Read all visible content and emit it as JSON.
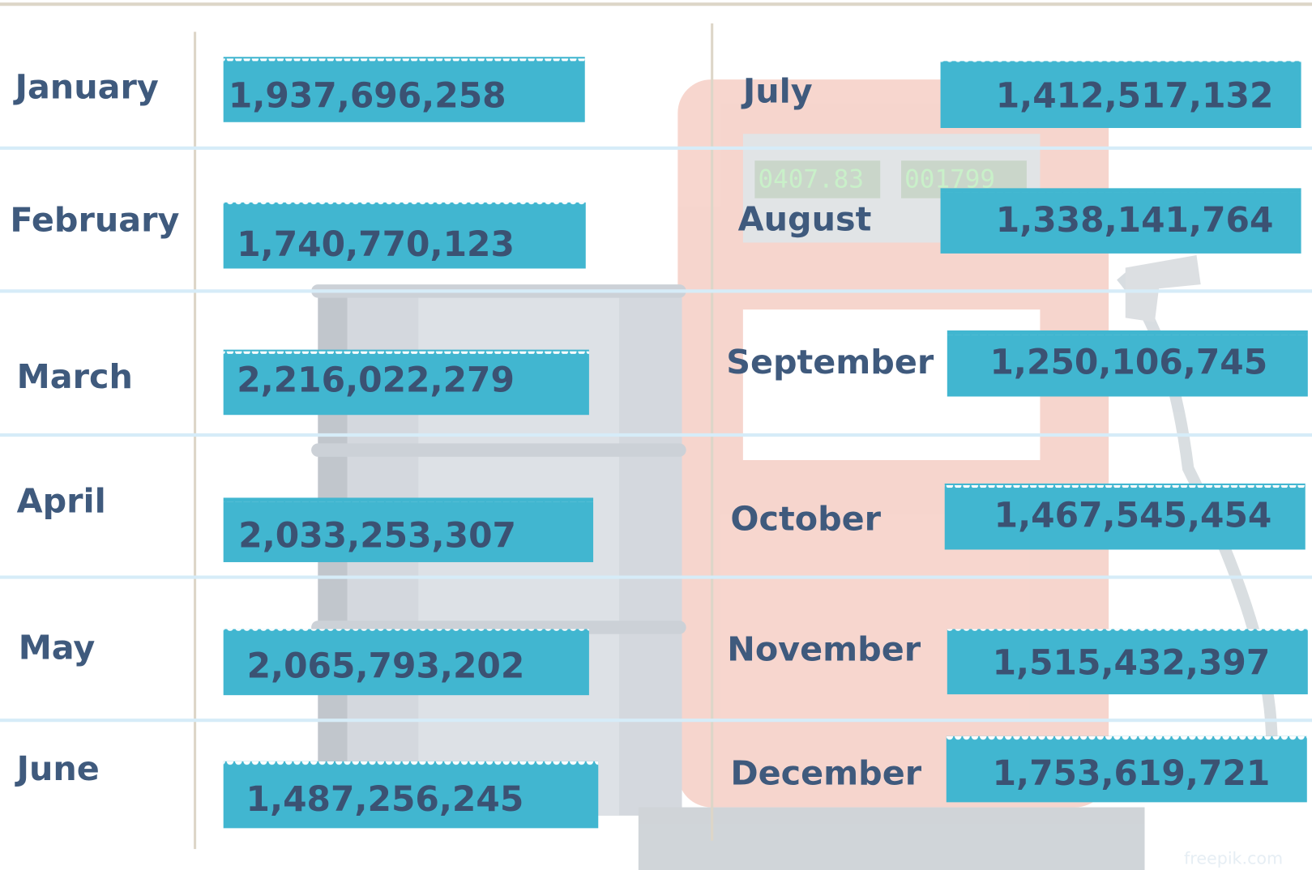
{
  "months": [
    {
      "label": "January",
      "value": "1,937,696,258"
    },
    {
      "label": "February",
      "value": "1,740,770,123"
    },
    {
      "label": "March",
      "value": "2,216,022,279"
    },
    {
      "label": "April",
      "value": "2,033,253,307"
    },
    {
      "label": "May",
      "value": "2,065,793,202"
    },
    {
      "label": "June",
      "value": "1,487,256,245"
    },
    {
      "label": "July",
      "value": "1,412,517,132"
    },
    {
      "label": "August",
      "value": "1,338,141,764"
    },
    {
      "label": "September",
      "value": "1,250,106,745"
    },
    {
      "label": "October",
      "value": "1,467,545,454"
    },
    {
      "label": "November",
      "value": "1,515,432,397"
    },
    {
      "label": "December",
      "value": "1,753,619,721"
    }
  ],
  "pump_display": [
    "0407.83",
    "001799"
  ],
  "watermark": "freepik.com"
}
